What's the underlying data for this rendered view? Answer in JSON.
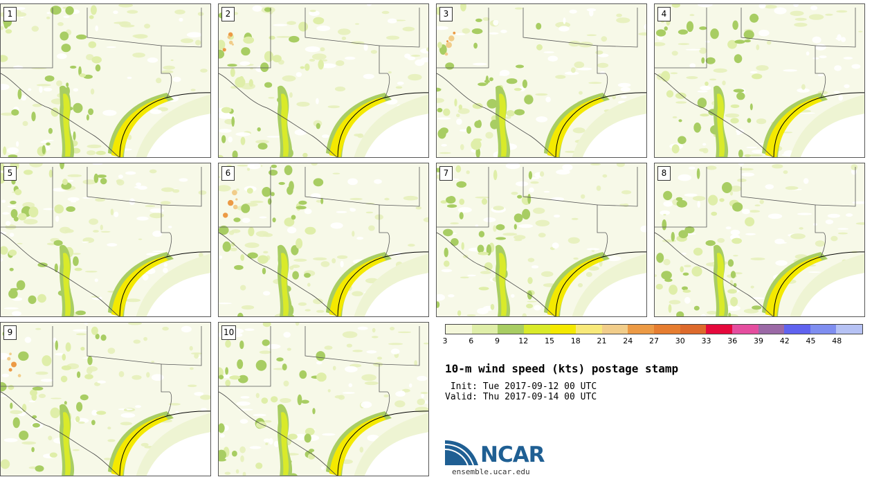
{
  "panels": [
    {
      "label": "1"
    },
    {
      "label": "2"
    },
    {
      "label": "3"
    },
    {
      "label": "4"
    },
    {
      "label": "5"
    },
    {
      "label": "6"
    },
    {
      "label": "7"
    },
    {
      "label": "8"
    },
    {
      "label": "9"
    },
    {
      "label": "10"
    }
  ],
  "colorbar": {
    "ticks": [
      "3",
      "6",
      "9",
      "12",
      "15",
      "18",
      "21",
      "24",
      "27",
      "30",
      "33",
      "36",
      "39",
      "42",
      "45",
      "48"
    ],
    "colors": [
      "#f4f7da",
      "#dfeea9",
      "#a8cd63",
      "#d9ea2a",
      "#f4e900",
      "#f8e97a",
      "#f1cd8a",
      "#ec9a45",
      "#e67d30",
      "#dd6a2c",
      "#e5093c",
      "#e54e9f",
      "#9b69a6",
      "#6063ef",
      "#7f8ef0",
      "#b6c2f4"
    ]
  },
  "title": "10-m wind speed (kts) postage stamp",
  "init_text": " Init: Tue 2017-09-12 00 UTC",
  "valid_text": "Valid: Thu 2017-09-14 00 UTC",
  "logo": {
    "text": "NCAR",
    "url": "ensemble.ucar.edu"
  }
}
